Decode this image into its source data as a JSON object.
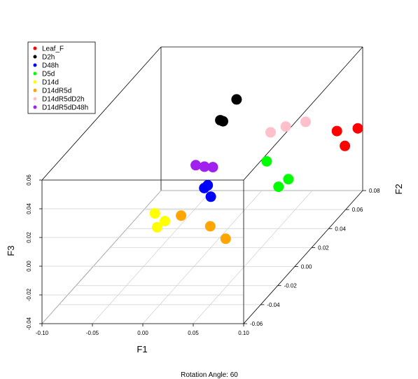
{
  "chart_data": {
    "type": "scatter",
    "subtype": "3d-scatter",
    "footer": "Rotation Angle: 60",
    "axes": {
      "x": {
        "label": "F1",
        "range": [
          -0.1,
          0.1
        ],
        "ticks": [
          "-0.10",
          "-0.05",
          "0.00",
          "0.05",
          "0.10"
        ]
      },
      "y": {
        "label": "F2",
        "range": [
          -0.06,
          0.08
        ],
        "ticks": [
          "-0.06",
          "-0.04",
          "-0.02",
          "0.00",
          "0.02",
          "0.04",
          "0.06",
          "0.08"
        ]
      },
      "z": {
        "label": "F3",
        "range": [
          -0.04,
          0.06
        ],
        "ticks": [
          "-0.04",
          "-0.02",
          "0.00",
          "0.02",
          "0.04",
          "0.06"
        ]
      }
    },
    "grid": true,
    "legend_position": "top-left",
    "series": [
      {
        "name": "Leaf_F",
        "color": "#ff0000",
        "points": [
          [
            0.096,
            0.079,
            0.004
          ],
          [
            0.095,
            0.065,
            0.001
          ],
          [
            0.093,
            0.058,
            0.016
          ]
        ]
      },
      {
        "name": "D2h",
        "color": "#000000",
        "points": [
          [
            0.011,
            0.018,
            0.05
          ],
          [
            0.007,
            0.026,
            0.044
          ],
          [
            -0.004,
            0.055,
            0.04
          ]
        ]
      },
      {
        "name": "D48h",
        "color": "#0000ff",
        "points": [
          [
            0.016,
            0.001,
            0.008
          ],
          [
            0.018,
            -0.005,
            0.02
          ],
          [
            0.012,
            -0.002,
            0.016
          ]
        ]
      },
      {
        "name": "D5d",
        "color": "#00ff00",
        "points": [
          [
            0.068,
            0.019,
            0.003
          ],
          [
            0.071,
            0.027,
            0.003
          ],
          [
            0.063,
            0.011,
            0.026
          ]
        ]
      },
      {
        "name": "D14d",
        "color": "#ffff00",
        "points": [
          [
            -0.022,
            -0.008,
            -0.003
          ],
          [
            -0.028,
            -0.01,
            -0.006
          ],
          [
            -0.031,
            -0.009,
            0.003
          ]
        ]
      },
      {
        "name": "D14dR5d",
        "color": "#ffa500",
        "points": [
          [
            0.016,
            -0.034,
            0.018
          ],
          [
            0.04,
            -0.01,
            -0.014
          ],
          [
            0.034,
            -0.021,
            0.002
          ]
        ]
      },
      {
        "name": "D14dR5dD2h",
        "color": "#ffc0cb",
        "points": [
          [
            0.078,
            0.039,
            0.035
          ],
          [
            0.065,
            0.031,
            0.037
          ],
          [
            0.05,
            0.031,
            0.033
          ]
        ]
      },
      {
        "name": "D14dR5dD48h",
        "color": "#a020f0",
        "points": [
          [
            0.002,
            0.02,
            0.016
          ],
          [
            -0.004,
            0.007,
            0.026
          ],
          [
            -0.003,
            0.016,
            0.019
          ]
        ]
      }
    ]
  }
}
